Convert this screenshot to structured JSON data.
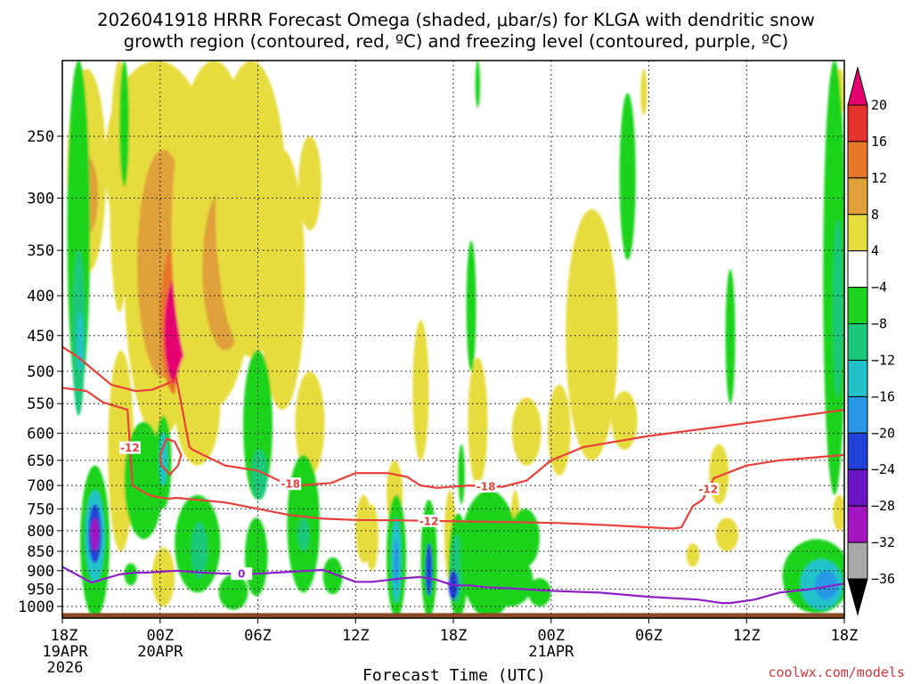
{
  "chart_data": {
    "type": "heatmap",
    "title_line1": "2026041918 HRRR Forecast Omega (shaded, μbar/s) for KLGA with dendritic snow",
    "title_line2": "growth region (contoured, red, ºC) and freezing level (contoured, purple, ºC)",
    "xlabel": "Forecast Time (UTC)",
    "credit": "coolwx.com/models",
    "y_axis": {
      "variable": "pressure (mb)",
      "range": [
        1035,
        200
      ],
      "ticks": [
        250,
        300,
        350,
        400,
        450,
        500,
        550,
        600,
        650,
        700,
        750,
        800,
        850,
        900,
        950,
        1000
      ],
      "tick_labels": [
        "250",
        "300",
        "350",
        "400",
        "450",
        "500",
        "550",
        "600",
        "650",
        "700",
        "750",
        "800",
        "850",
        "900",
        "950",
        "1000"
      ]
    },
    "x_axis": {
      "variable": "forecast hour",
      "range": [
        0,
        48
      ],
      "ticks": [
        0,
        6,
        12,
        18,
        24,
        30,
        36,
        42,
        48
      ],
      "tick_labels": [
        "18Z",
        "00Z",
        "06Z",
        "12Z",
        "18Z",
        "00Z",
        "06Z",
        "12Z",
        "18Z"
      ],
      "date_labels": [
        {
          "hour": 0,
          "line1": "19APR",
          "line2": "2026"
        },
        {
          "hour": 6,
          "line1": "20APR"
        },
        {
          "hour": 30,
          "line1": "21APR"
        }
      ]
    },
    "colorbar": {
      "labels": [
        "20",
        "16",
        "12",
        "8",
        "4",
        "−4",
        "−8",
        "−12",
        "−16",
        "−20",
        "−24",
        "−28",
        "−32",
        "−36"
      ],
      "bins": [
        {
          "lo": 20,
          "hi": null,
          "color": "#e5006f"
        },
        {
          "lo": 16,
          "hi": 20,
          "color": "#e8322e"
        },
        {
          "lo": 12,
          "hi": 16,
          "color": "#e8762a"
        },
        {
          "lo": 8,
          "hi": 12,
          "color": "#e0a03a"
        },
        {
          "lo": 4,
          "hi": 8,
          "color": "#e6dc3c"
        },
        {
          "lo": -4,
          "hi": 4,
          "color": "#ffffff"
        },
        {
          "lo": -8,
          "hi": -4,
          "color": "#1ed31e"
        },
        {
          "lo": -12,
          "hi": -8,
          "color": "#1ec87a"
        },
        {
          "lo": -16,
          "hi": -12,
          "color": "#22c3c8"
        },
        {
          "lo": -20,
          "hi": -16,
          "color": "#2898e6"
        },
        {
          "lo": -24,
          "hi": -20,
          "color": "#2142d8"
        },
        {
          "lo": -28,
          "hi": -24,
          "color": "#6a16c6"
        },
        {
          "lo": -32,
          "hi": -28,
          "color": "#a316c2"
        },
        {
          "lo": -36,
          "hi": -32,
          "color": "#a8a8a8"
        },
        {
          "lo": null,
          "hi": -36,
          "color": "#000000"
        }
      ]
    },
    "omega_features": [
      {
        "hour": 1.5,
        "p": 290,
        "dh": 1.2,
        "dp": 85,
        "value": 6
      },
      {
        "hour": 1.5,
        "p": 300,
        "dh": 0.7,
        "dp": 35,
        "value": 10
      },
      {
        "hour": 3.5,
        "p": 290,
        "dh": 0.6,
        "dp": 130,
        "value": 6
      },
      {
        "hour": 5.8,
        "p": 270,
        "dh": 3.2,
        "dp": 95,
        "value": 6
      },
      {
        "hour": 6.0,
        "p": 420,
        "dh": 2.2,
        "dp": 190,
        "value": 6
      },
      {
        "hour": 6.2,
        "p": 385,
        "dh": 1.6,
        "dp": 125,
        "value": 10
      },
      {
        "hour": 6.9,
        "p": 440,
        "dh": 0.9,
        "dp": 95,
        "value": 14
      },
      {
        "hour": 7.0,
        "p": 450,
        "dh": 0.75,
        "dp": 70,
        "value": 24
      },
      {
        "hour": 9.3,
        "p": 360,
        "dh": 2.6,
        "dp": 195,
        "value": 6
      },
      {
        "hour": 10.0,
        "p": 380,
        "dh": 1.4,
        "dp": 90,
        "value": 10
      },
      {
        "hour": 10.1,
        "p": 360,
        "dh": 0.6,
        "dp": 40,
        "value": 14
      },
      {
        "hour": 11.6,
        "p": 340,
        "dh": 2.2,
        "dp": 140,
        "value": 6
      },
      {
        "hour": 13.5,
        "p": 410,
        "dh": 1.4,
        "dp": 150,
        "value": 6
      },
      {
        "hour": 15.2,
        "p": 290,
        "dh": 0.7,
        "dp": 40,
        "value": 6
      },
      {
        "hour": 15.2,
        "p": 590,
        "dh": 0.9,
        "dp": 90,
        "value": 6
      },
      {
        "hour": 8.3,
        "p": 560,
        "dh": 1.4,
        "dp": 100,
        "value": 6
      },
      {
        "hour": 3.6,
        "p": 660,
        "dh": 0.8,
        "dp": 190,
        "value": 6
      },
      {
        "hour": 4.6,
        "p": 740,
        "dh": 0.6,
        "dp": 60,
        "value": 10
      },
      {
        "hour": 6.2,
        "p": 920,
        "dh": 0.7,
        "dp": 80,
        "value": 6
      },
      {
        "hour": 18.5,
        "p": 800,
        "dh": 0.5,
        "dp": 80,
        "value": 6
      },
      {
        "hour": 19.0,
        "p": 820,
        "dh": 0.4,
        "dp": 80,
        "value": 6
      },
      {
        "hour": 23.8,
        "p": 820,
        "dh": 0.35,
        "dp": 110,
        "value": 6
      },
      {
        "hour": 20.4,
        "p": 720,
        "dh": 0.5,
        "dp": 70,
        "value": 6
      },
      {
        "hour": 22.0,
        "p": 540,
        "dh": 0.5,
        "dp": 110,
        "value": 6
      },
      {
        "hour": 25.5,
        "p": 590,
        "dh": 0.6,
        "dp": 110,
        "value": 6
      },
      {
        "hour": 28.5,
        "p": 600,
        "dh": 0.9,
        "dp": 60,
        "value": 6
      },
      {
        "hour": 32.5,
        "p": 480,
        "dh": 1.6,
        "dp": 170,
        "value": 6
      },
      {
        "hour": 30.5,
        "p": 600,
        "dh": 0.7,
        "dp": 80,
        "value": 6
      },
      {
        "hour": 34.5,
        "p": 580,
        "dh": 0.8,
        "dp": 50,
        "value": 6
      },
      {
        "hour": 40.3,
        "p": 680,
        "dh": 0.6,
        "dp": 60,
        "value": 6
      },
      {
        "hour": 40.8,
        "p": 810,
        "dh": 0.7,
        "dp": 40,
        "value": 6
      },
      {
        "hour": 38.7,
        "p": 860,
        "dh": 0.4,
        "dp": 30,
        "value": 6
      },
      {
        "hour": 25.7,
        "p": 810,
        "dh": 0.3,
        "dp": 60,
        "value": 6
      },
      {
        "hour": 27.8,
        "p": 800,
        "dh": 0.3,
        "dp": 90,
        "value": 6
      },
      {
        "hour": 47.7,
        "p": 760,
        "dh": 0.4,
        "dp": 40,
        "value": 6
      },
      {
        "hour": 47.7,
        "p": 220,
        "dh": 0.4,
        "dp": 15,
        "value": 6
      },
      {
        "hour": 35.7,
        "p": 220,
        "dh": 0.2,
        "dp": 15,
        "value": 6
      },
      {
        "hour": 1.0,
        "p": 350,
        "dh": 0.7,
        "dp": 190,
        "value": -6
      },
      {
        "hour": 1.0,
        "p": 460,
        "dh": 0.4,
        "dp": 110,
        "value": -10
      },
      {
        "hour": 1.1,
        "p": 460,
        "dh": 0.2,
        "dp": 40,
        "value": -14
      },
      {
        "hour": 2.0,
        "p": 850,
        "dh": 0.9,
        "dp": 190,
        "value": -6
      },
      {
        "hour": 2.0,
        "p": 820,
        "dh": 0.6,
        "dp": 110,
        "value": -14
      },
      {
        "hour": 2.0,
        "p": 810,
        "dh": 0.4,
        "dp": 70,
        "value": -22
      },
      {
        "hour": 2.0,
        "p": 810,
        "dh": 0.25,
        "dp": 40,
        "value": -30
      },
      {
        "hour": 3.8,
        "p": 235,
        "dh": 0.3,
        "dp": 55,
        "value": -6
      },
      {
        "hour": 5.0,
        "p": 700,
        "dh": 1.2,
        "dp": 120,
        "value": -6
      },
      {
        "hour": 6.2,
        "p": 660,
        "dh": 0.5,
        "dp": 90,
        "value": -6
      },
      {
        "hour": 6.2,
        "p": 650,
        "dh": 0.25,
        "dp": 50,
        "value": -14
      },
      {
        "hour": 8.3,
        "p": 840,
        "dh": 1.4,
        "dp": 120,
        "value": -6
      },
      {
        "hour": 8.4,
        "p": 850,
        "dh": 0.5,
        "dp": 70,
        "value": -10
      },
      {
        "hour": 4.2,
        "p": 910,
        "dh": 0.4,
        "dp": 30,
        "value": -6
      },
      {
        "hour": 10.5,
        "p": 960,
        "dh": 0.9,
        "dp": 50,
        "value": -6
      },
      {
        "hour": 12.0,
        "p": 600,
        "dh": 0.9,
        "dp": 130,
        "value": -6
      },
      {
        "hour": 12.1,
        "p": 680,
        "dh": 0.5,
        "dp": 50,
        "value": -10
      },
      {
        "hour": 11.9,
        "p": 870,
        "dh": 0.7,
        "dp": 100,
        "value": -6
      },
      {
        "hour": 14.8,
        "p": 800,
        "dh": 1.0,
        "dp": 160,
        "value": -6
      },
      {
        "hour": 14.8,
        "p": 810,
        "dh": 0.35,
        "dp": 40,
        "value": -10
      },
      {
        "hour": 16.6,
        "p": 915,
        "dh": 0.6,
        "dp": 50,
        "value": -6
      },
      {
        "hour": 20.5,
        "p": 900,
        "dh": 0.6,
        "dp": 180,
        "value": -6
      },
      {
        "hour": 20.5,
        "p": 880,
        "dh": 0.3,
        "dp": 110,
        "value": -14
      },
      {
        "hour": 20.5,
        "p": 880,
        "dh": 0.15,
        "dp": 60,
        "value": -18
      },
      {
        "hour": 22.5,
        "p": 890,
        "dh": 0.5,
        "dp": 160,
        "value": -6
      },
      {
        "hour": 22.5,
        "p": 900,
        "dh": 0.2,
        "dp": 70,
        "value": -22
      },
      {
        "hour": 24.3,
        "p": 910,
        "dh": 0.6,
        "dp": 150,
        "value": -6
      },
      {
        "hour": 24.2,
        "p": 900,
        "dh": 0.35,
        "dp": 90,
        "value": -10
      },
      {
        "hour": 24.0,
        "p": 940,
        "dh": 0.3,
        "dp": 40,
        "value": -22
      },
      {
        "hour": 26.2,
        "p": 880,
        "dh": 1.8,
        "dp": 170,
        "value": -6
      },
      {
        "hour": 27.5,
        "p": 930,
        "dh": 1.4,
        "dp": 70,
        "value": -6
      },
      {
        "hour": 28.4,
        "p": 820,
        "dh": 0.9,
        "dp": 70,
        "value": -6
      },
      {
        "hour": 29.3,
        "p": 960,
        "dh": 0.7,
        "dp": 40,
        "value": -6
      },
      {
        "hour": 24.5,
        "p": 680,
        "dh": 0.2,
        "dp": 60,
        "value": -6
      },
      {
        "hour": 25.1,
        "p": 420,
        "dh": 0.3,
        "dp": 80,
        "value": -6
      },
      {
        "hour": 25.5,
        "p": 210,
        "dh": 0.15,
        "dp": 20,
        "value": -6
      },
      {
        "hour": 34.7,
        "p": 290,
        "dh": 0.5,
        "dp": 70,
        "value": -6
      },
      {
        "hour": 41.0,
        "p": 460,
        "dh": 0.3,
        "dp": 90,
        "value": -6
      },
      {
        "hour": 47.4,
        "p": 400,
        "dh": 0.7,
        "dp": 320,
        "value": -6
      },
      {
        "hour": 47.6,
        "p": 430,
        "dh": 0.3,
        "dp": 110,
        "value": -10
      },
      {
        "hour": 46.3,
        "p": 920,
        "dh": 2.1,
        "dp": 100,
        "value": -6
      },
      {
        "hour": 46.6,
        "p": 940,
        "dh": 1.3,
        "dp": 70,
        "value": -14
      },
      {
        "hour": 46.9,
        "p": 940,
        "dh": 0.7,
        "dp": 40,
        "value": -18
      }
    ],
    "contours": [
      {
        "name": "dgz-warm-edge",
        "label": "-12",
        "color": "#e8403a",
        "hours": [
          0,
          1.5,
          2.5,
          4.0,
          4.3,
          5.2,
          5.5,
          6.5,
          7.0,
          10.0,
          12.0,
          14.0,
          16.0,
          18.0,
          21.0,
          24.0,
          28.0,
          30.5,
          33.0,
          35.0,
          37.5,
          38.0,
          38.7,
          39.3,
          40.0,
          42.0,
          44.0,
          48.0
        ],
        "p": [
          525,
          530,
          548,
          560,
          700,
          718,
          722,
          728,
          726,
          736,
          750,
          764,
          772,
          775,
          776,
          778,
          780,
          782,
          786,
          790,
          795,
          792,
          744,
          730,
          685,
          660,
          650,
          640
        ]
      },
      {
        "name": "dgz-cold-edge",
        "label": "-18",
        "color": "#e8403a",
        "hours": [
          0,
          1.0,
          2.0,
          3.0,
          4.5,
          5.5,
          6.5,
          7.0,
          7.3,
          7.8,
          8.0,
          9.0,
          10.0,
          12.0,
          13.5,
          14.5,
          16.5,
          18.0,
          20.0,
          21.2,
          21.5,
          22.0,
          23.0,
          25.0,
          27.0,
          28.5,
          30.0,
          32.0,
          36.0,
          40.0,
          44.0,
          48.0
        ],
        "p": [
          465,
          480,
          500,
          520,
          530,
          528,
          518,
          510,
          550,
          625,
          630,
          645,
          660,
          670,
          693,
          700,
          695,
          675,
          675,
          683,
          690,
          700,
          705,
          700,
          703,
          690,
          650,
          625,
          605,
          590,
          575,
          560
        ]
      },
      {
        "name": "dgz-bubble",
        "label": "",
        "color": "#e8403a",
        "closed": true,
        "hours": [
          6.0,
          6.4,
          6.9,
          7.3,
          7.1,
          6.6,
          6.1
        ],
        "p": [
          640,
          610,
          615,
          640,
          660,
          678,
          660
        ]
      },
      {
        "name": "freezing-level",
        "label": "0",
        "color": "#8e1fc8",
        "hours": [
          0,
          1.8,
          3.5,
          4.5,
          5.2,
          7.0,
          8.5,
          10.0,
          12.0,
          14.0,
          16.0,
          18.0,
          19.0,
          21.0,
          22.0,
          23.0,
          24.0,
          25.0,
          26.0,
          27.5,
          30.0,
          33.0,
          36.0,
          39.0,
          40.5,
          41.0,
          42.5,
          44.0,
          46.0,
          48.0
        ],
        "p": [
          890,
          932,
          910,
          905,
          905,
          900,
          905,
          908,
          908,
          903,
          898,
          930,
          930,
          920,
          917,
          925,
          940,
          940,
          945,
          948,
          955,
          960,
          972,
          980,
          990,
          990,
          980,
          960,
          950,
          935
        ]
      }
    ],
    "terrain": {
      "surface_pressure": 1020,
      "color": "#8b4a24"
    }
  }
}
